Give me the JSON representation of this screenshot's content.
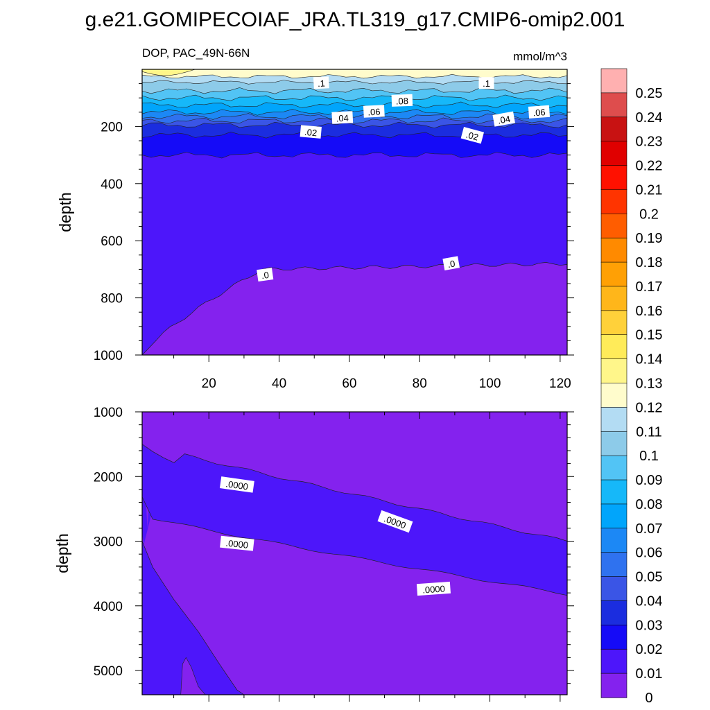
{
  "title": "g.e21.GOMIPECOIAF_JRA.TL319_g17.CMIP6-omip2.001",
  "chart_data": [
    {
      "type": "heatmap",
      "subtitle_left": "DOP, PAC_49N-66N",
      "subtitle_right": "mmol/m^3",
      "ylabel": "depth",
      "xlabel": "",
      "xlim": [
        1,
        122
      ],
      "ylim": [
        0,
        1000
      ],
      "y_inverted": true,
      "xticks": [
        "20",
        "40",
        "60",
        "80",
        "100",
        "120"
      ],
      "yticks": [
        "200",
        "400",
        "600",
        "800",
        "1000"
      ],
      "contour_labels": [
        ".1",
        ".1",
        ".08",
        ".06",
        ".04",
        ".06",
        ".04",
        ".02",
        ".02",
        ".0",
        ".0"
      ],
      "layers": [
        {
          "level": 0.0,
          "depth_top_left": 1000,
          "depth_top_mid": 700,
          "depth_top_right": 680
        },
        {
          "level": 0.01,
          "depth": 300
        },
        {
          "level": 0.02,
          "depth": 230
        },
        {
          "level": 0.03,
          "depth": 195
        },
        {
          "level": 0.04,
          "depth": 180
        },
        {
          "level": 0.05,
          "depth": 165
        },
        {
          "level": 0.06,
          "depth": 150
        },
        {
          "level": 0.07,
          "depth": 125
        },
        {
          "level": 0.08,
          "depth": 100
        },
        {
          "level": 0.09,
          "depth": 75
        },
        {
          "level": 0.1,
          "depth": 45
        },
        {
          "level": 0.11,
          "depth": 25
        },
        {
          "level": 0.12,
          "depth": 5
        }
      ]
    },
    {
      "type": "heatmap",
      "ylabel": "depth",
      "xlim": [
        1,
        122
      ],
      "ylim": [
        1000,
        5375
      ],
      "y_inverted": true,
      "yticks": [
        "1000",
        "2000",
        "3000",
        "4000",
        "5000"
      ],
      "contour_labels": [
        ".0000",
        ".0000",
        ".0000",
        ".0000"
      ],
      "bands": [
        {
          "level": 0.0,
          "description": "upper contour 1500 to 3000 depth, lower contour 2600 to 3800 depth"
        }
      ]
    }
  ],
  "colorbar": {
    "labels": [
      "0.25",
      "0.24",
      "0.23",
      "0.22",
      "0.21",
      "0.2",
      "0.19",
      "0.18",
      "0.17",
      "0.16",
      "0.15",
      "0.14",
      "0.13",
      "0.12",
      "0.11",
      "0.1",
      "0.09",
      "0.08",
      "0.07",
      "0.06",
      "0.05",
      "0.04",
      "0.03",
      "0.02",
      "0.01",
      "0"
    ],
    "colors": [
      "#8422ee",
      "#4d16fa",
      "#150bf7",
      "#1b2ddf",
      "#3a55e6",
      "#2f72ef",
      "#1c88f5",
      "#01a5fb",
      "#16b8f9",
      "#52c4f5",
      "#8dcbe9",
      "#b3dcf3",
      "#fffccc",
      "#fff68a",
      "#ffeb59",
      "#ffd13a",
      "#ffb61a",
      "#ffa005",
      "#ff8a00",
      "#ff5d00",
      "#ff3400",
      "#ff1100",
      "#e00000",
      "#c81212",
      "#de4d4d",
      "#ffb0b0"
    ]
  }
}
